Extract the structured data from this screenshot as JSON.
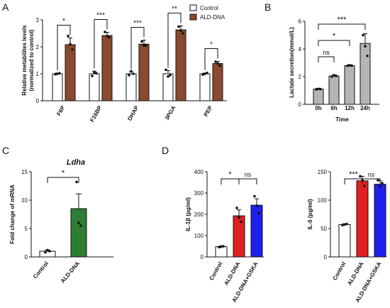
{
  "chart_data": [
    {
      "panel": "A",
      "type": "bar",
      "ylabel": "Relative metabilites levels\n(normalized to control)",
      "ylim": [
        0,
        3
      ],
      "yticks": [
        0,
        1,
        2,
        3
      ],
      "categories": [
        "F6P",
        "F16BP",
        "DHAP",
        "3PGA",
        "PEP"
      ],
      "series": [
        {
          "name": "Control",
          "color": "#ffffff",
          "values": [
            1.0,
            1.0,
            1.0,
            1.0,
            1.0
          ],
          "errors": [
            0.03,
            0.1,
            0.08,
            0.12,
            0.03
          ]
        },
        {
          "name": "ALD-DNA",
          "color": "#8a4a2e",
          "values": [
            2.08,
            2.42,
            2.1,
            2.63,
            1.38
          ],
          "errors": [
            0.25,
            0.12,
            0.15,
            0.15,
            0.08
          ]
        }
      ],
      "points": [
        [
          [
            0.98,
            1.0,
            1.02
          ],
          [
            2.4,
            2.1,
            1.9
          ]
        ],
        [
          [
            0.92,
            1.05,
            1.02
          ],
          [
            2.55,
            2.4,
            2.35
          ]
        ],
        [
          [
            0.95,
            1.1,
            1.0
          ],
          [
            2.2,
            2.05,
            2.05
          ]
        ],
        [
          [
            1.15,
            0.9,
            0.95
          ],
          [
            2.75,
            2.6,
            2.5
          ]
        ],
        [
          [
            0.97,
            1.0,
            1.03
          ],
          [
            1.45,
            1.38,
            1.3
          ]
        ]
      ],
      "significance": [
        "*",
        "***",
        "***",
        "**",
        "*"
      ],
      "legend": [
        "Control",
        "ALD-DNA"
      ],
      "legend_position": "top-right"
    },
    {
      "panel": "B",
      "type": "bar",
      "xlabel": "Time",
      "ylabel": "Lactate secretion(mmol/L)",
      "ylim": [
        0,
        6
      ],
      "yticks": [
        0,
        2,
        4,
        6
      ],
      "categories": [
        "0h",
        "6h",
        "12h",
        "24h"
      ],
      "series": [
        {
          "name": "",
          "color": "#b5b5b5",
          "values": [
            1.1,
            2.05,
            2.8,
            4.4
          ],
          "errors": [
            0.05,
            0.08,
            0.06,
            0.7
          ]
        }
      ],
      "points": [
        [
          1.08,
          1.12,
          1.1
        ],
        [
          2.0,
          2.1,
          2.05
        ],
        [
          2.78,
          2.82,
          2.8
        ],
        [
          5.0,
          4.2,
          3.5
        ]
      ],
      "comparisons": [
        {
          "from": "0h",
          "to": "6h",
          "label": "ns"
        },
        {
          "from": "0h",
          "to": "12h",
          "label": "*"
        },
        {
          "from": "0h",
          "to": "24h",
          "label": "***"
        }
      ]
    },
    {
      "panel": "C",
      "type": "bar",
      "title": "Ldha",
      "ylabel": "Fold change of mRNA",
      "ylim": [
        0,
        15
      ],
      "yticks": [
        0,
        5,
        10,
        15
      ],
      "categories": [
        "Control",
        "ALD-DNA"
      ],
      "series": [
        {
          "name": "",
          "colors": [
            "#ffffff",
            "#2e7d32"
          ],
          "values": [
            1.0,
            8.5
          ],
          "errors": [
            0.2,
            2.6
          ]
        }
      ],
      "points": [
        [
          0.8,
          1.2,
          1.0
        ],
        [
          13.2,
          6.0,
          5.5
        ]
      ],
      "comparisons": [
        {
          "from": "Control",
          "to": "ALD-DNA",
          "label": "*"
        }
      ]
    },
    {
      "panel": "D",
      "type": "bar",
      "ylabel": "IL-1β (pg/ml)",
      "ylim": [
        0,
        400
      ],
      "yticks": [
        0,
        100,
        200,
        300,
        400
      ],
      "categories": [
        "Control",
        "ALD-DNA",
        "ALD-DNA+GSKA"
      ],
      "series": [
        {
          "name": "",
          "colors": [
            "#ffffff",
            "#e02020",
            "#2020ee"
          ],
          "values": [
            48,
            193,
            243
          ],
          "errors": [
            4,
            28,
            30
          ]
        }
      ],
      "points": [
        [
          46,
          48,
          50
        ],
        [
          230,
          185,
          165
        ],
        [
          285,
          240,
          205
        ]
      ],
      "comparisons": [
        {
          "from": "Control",
          "to": "ALD-DNA",
          "label": "*"
        },
        {
          "from": "ALD-DNA",
          "to": "ALD-DNA+GSKA",
          "label": "ns"
        }
      ]
    },
    {
      "panel": "D",
      "type": "bar",
      "ylabel": "IL-6 (pg/ml)",
      "ylim": [
        0,
        150
      ],
      "yticks": [
        0,
        50,
        100,
        150
      ],
      "categories": [
        "Control",
        "ALD-DNA",
        "ALD-DNA+GSKA"
      ],
      "series": [
        {
          "name": "",
          "colors": [
            "#ffffff",
            "#e02020",
            "#2020ee"
          ],
          "values": [
            57,
            134,
            128
          ],
          "errors": [
            1.5,
            8,
            6
          ]
        }
      ],
      "points": [
        [
          56,
          57,
          58
        ],
        [
          142,
          135,
          125
        ],
        [
          135,
          124,
          130
        ]
      ],
      "comparisons": [
        {
          "from": "Control",
          "to": "ALD-DNA",
          "label": "***"
        },
        {
          "from": "ALD-DNA",
          "to": "ALD-DNA+GSKA",
          "label": "ns"
        }
      ]
    }
  ]
}
